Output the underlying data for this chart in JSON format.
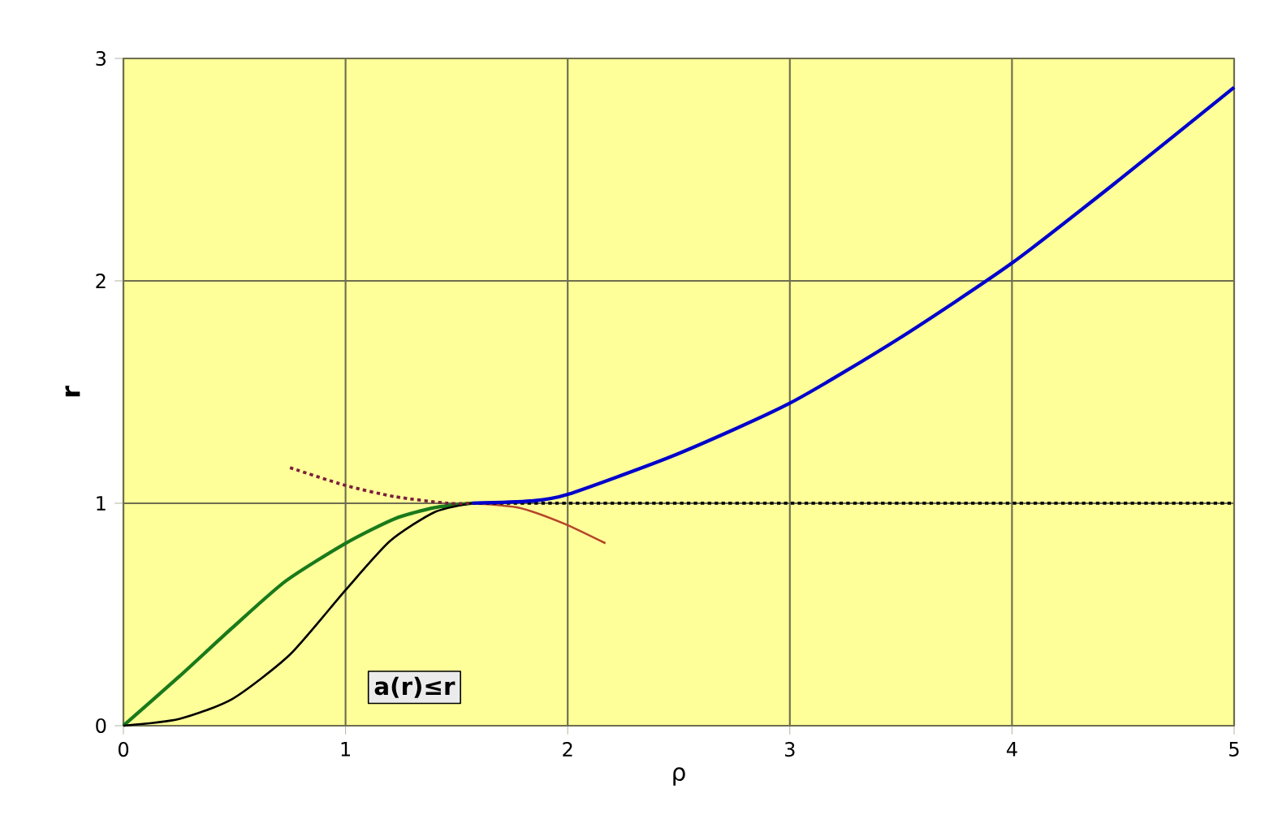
{
  "chart_data": {
    "type": "line",
    "xlabel": "ρ",
    "ylabel": "r",
    "xlim": [
      0,
      5
    ],
    "ylim": [
      0,
      3
    ],
    "xticks": [
      0,
      1,
      2,
      3,
      4,
      5
    ],
    "yticks": [
      0,
      1,
      2,
      3
    ],
    "grid": true,
    "marker": "none",
    "annotations": [
      "a(r)≤r"
    ],
    "series": [
      {
        "color": "#1a7a1a",
        "x": [
          0,
          0.25,
          0.49,
          0.73,
          1,
          1.22,
          1.4,
          1.57
        ],
        "values": [
          0,
          0.22,
          0.44,
          0.65,
          0.82,
          0.93,
          0.98,
          1.0
        ]
      },
      {
        "color": "#000000",
        "x": [
          0,
          0.25,
          0.49,
          0.75,
          1,
          1.2,
          1.4,
          1.57
        ],
        "values": [
          0,
          0.03,
          0.12,
          0.32,
          0.61,
          0.83,
          0.96,
          1.0
        ]
      },
      {
        "color": "#7a1f3d",
        "line_style": "dotted",
        "x": [
          0.75,
          1,
          1.22,
          1.46,
          1.57
        ],
        "values": [
          1.16,
          1.08,
          1.03,
          1.0,
          1.0
        ]
      },
      {
        "color": "#b5452a",
        "x": [
          1.57,
          1.78,
          1.98,
          2.17
        ],
        "values": [
          1.0,
          0.98,
          0.91,
          0.82
        ]
      },
      {
        "color": "#000000",
        "line_style": "dotted",
        "x": [
          1.57,
          5
        ],
        "values": [
          1.0,
          1.0
        ]
      },
      {
        "color": "#0000cc",
        "x": [
          1.57,
          1.83,
          2,
          2.49,
          3,
          3.49,
          4,
          4.49,
          5
        ],
        "values": [
          1.0,
          1.01,
          1.04,
          1.22,
          1.45,
          1.74,
          2.08,
          2.46,
          2.87
        ]
      }
    ]
  }
}
